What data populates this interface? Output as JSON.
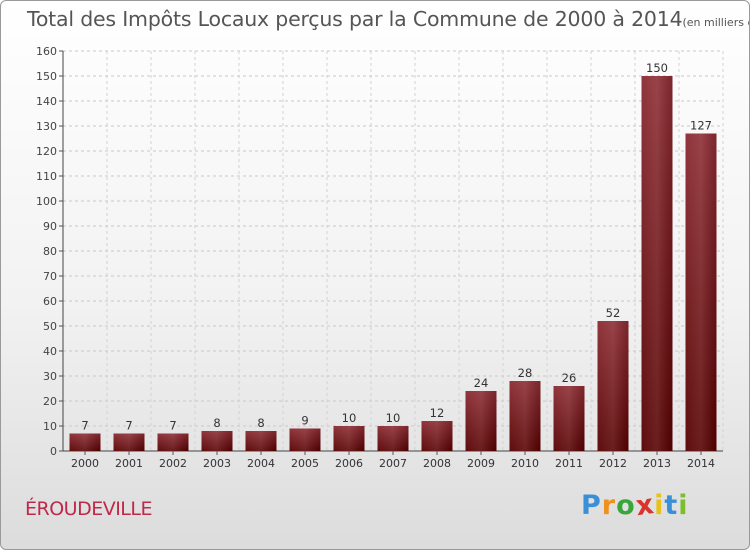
{
  "title": "Total des Impôts Locaux perçus par la Commune de 2000 à 2014",
  "subtitle": "(en milliers d'€)",
  "commune": "ÉROUDEVILLE",
  "logo": {
    "letters": [
      "P",
      "r",
      "o",
      "x",
      "i",
      "t",
      "i"
    ],
    "colors": [
      "#3a8fd6",
      "#f0901e",
      "#3aa63a",
      "#d8342b",
      "#e8c21a",
      "#3a8fd6",
      "#7bbf2a"
    ]
  },
  "chart_data": {
    "type": "bar",
    "categories": [
      "2000",
      "2001",
      "2002",
      "2003",
      "2004",
      "2005",
      "2006",
      "2007",
      "2008",
      "2009",
      "2010",
      "2011",
      "2012",
      "2013",
      "2014"
    ],
    "values": [
      7,
      7,
      7,
      8,
      8,
      9,
      10,
      10,
      12,
      24,
      28,
      26,
      52,
      150,
      127
    ],
    "data_labels": [
      "7",
      "7",
      "7",
      "8",
      "8",
      "9",
      "10",
      "10",
      "12",
      "24",
      "28",
      "26",
      "52",
      "150",
      "127"
    ],
    "y_ticks": [
      0,
      10,
      20,
      30,
      40,
      50,
      60,
      70,
      80,
      90,
      100,
      110,
      120,
      130,
      140,
      150,
      160
    ],
    "ylim": [
      0,
      160
    ],
    "grid": true,
    "bar_color": "#7a1a20"
  }
}
